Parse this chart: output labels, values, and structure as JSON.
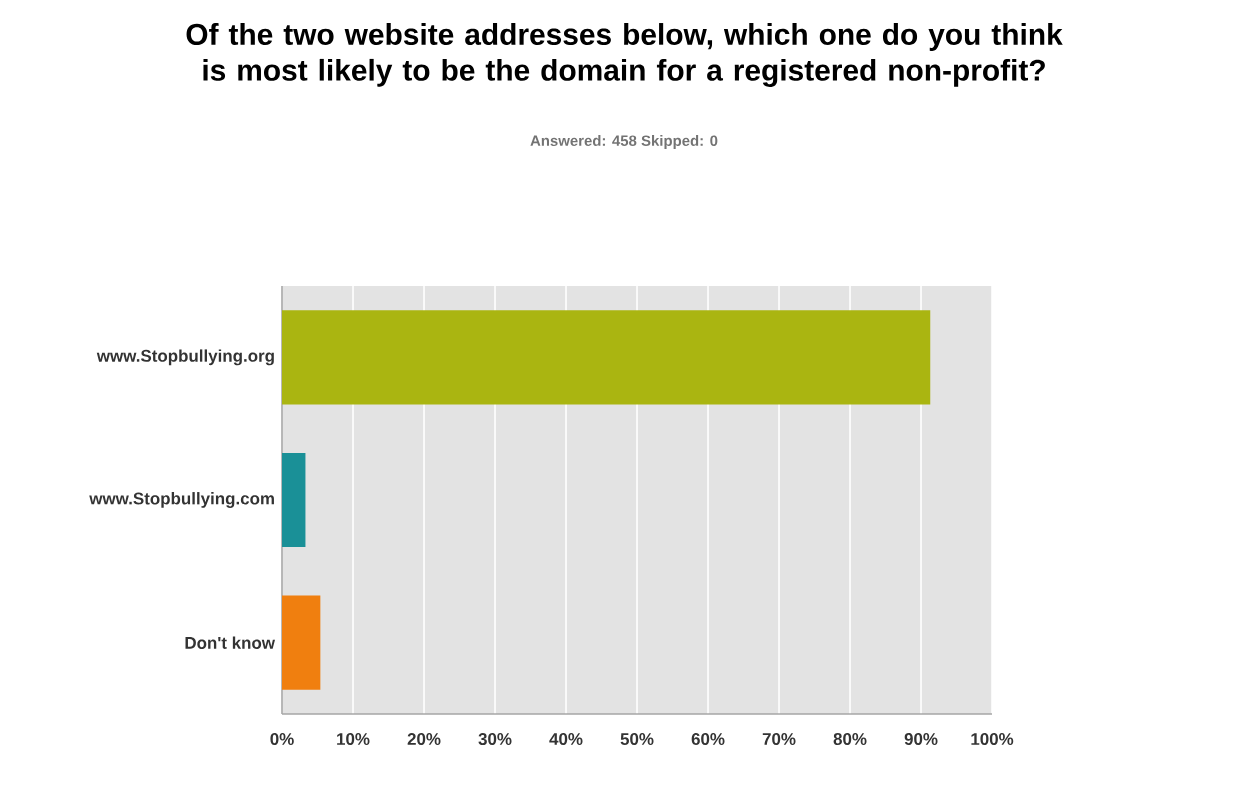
{
  "chart_data": {
    "type": "bar",
    "orientation": "horizontal",
    "title": "Of the two website addresses below, which one do you think is most likely to be the domain for a registered non-profit?",
    "subtitle": "Answered: 458   Skipped: 0",
    "categories": [
      "www.Stopbullying.org",
      "www.Stopbullying.com",
      "Don't know"
    ],
    "values": [
      91.3,
      3.3,
      5.4
    ],
    "colors": [
      "#aab511",
      "#1a9097",
      "#f07f0f"
    ],
    "xlim": [
      0,
      100
    ],
    "xticks": [
      {
        "value": 0,
        "label": "0%"
      },
      {
        "value": 10,
        "label": "10%"
      },
      {
        "value": 20,
        "label": "20%"
      },
      {
        "value": 30,
        "label": "30%"
      },
      {
        "value": 40,
        "label": "40%"
      },
      {
        "value": 50,
        "label": "50%"
      },
      {
        "value": 60,
        "label": "60%"
      },
      {
        "value": 70,
        "label": "70%"
      },
      {
        "value": 80,
        "label": "80%"
      },
      {
        "value": 90,
        "label": "90%"
      },
      {
        "value": 100,
        "label": "100%"
      }
    ],
    "grid": "x"
  }
}
